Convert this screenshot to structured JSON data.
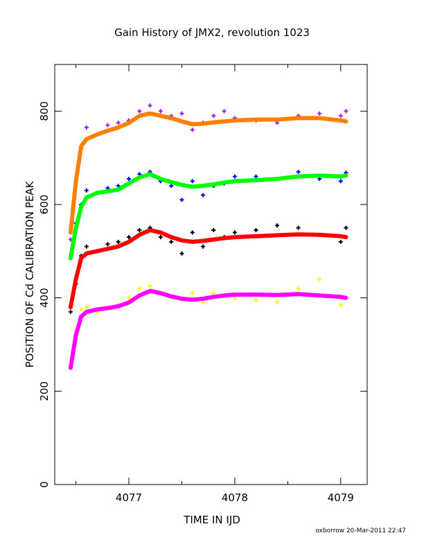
{
  "chart_data": {
    "type": "scatter",
    "title": "Gain History of JMX2, revolution 1023",
    "xlabel": "TIME IN IJD",
    "ylabel": "POSITION OF Cd CALIBRATION PEAK",
    "footer": "oxborrow 20-Mar-2011 22:47",
    "xlim": [
      4076.3,
      4079.25
    ],
    "ylim": [
      0,
      900
    ],
    "x_ticks": [
      4077,
      4078,
      4079
    ],
    "y_ticks": [
      0,
      200,
      400,
      600,
      800
    ],
    "x_tick_labels": [
      "4077",
      "4078",
      "4079"
    ],
    "y_tick_labels": [
      "0",
      "200",
      "400",
      "600",
      "800"
    ],
    "grid": false,
    "series": [
      {
        "color": "#a020f0",
        "trend_color": "#ff7f00",
        "x": [
          4076.45,
          4076.5,
          4076.55,
          4076.6,
          4076.7,
          4076.8,
          4076.9,
          4077.0,
          4077.1,
          4077.2,
          4077.3,
          4077.4,
          4077.5,
          4077.6,
          4077.7,
          4077.8,
          4077.9,
          4078.0,
          4078.2,
          4078.4,
          4078.6,
          4078.8,
          4079.0,
          4079.05
        ],
        "y": [
          525,
          645,
          720,
          765,
          750,
          770,
          775,
          780,
          800,
          812,
          800,
          790,
          795,
          760,
          775,
          790,
          800,
          785,
          780,
          775,
          790,
          795,
          790,
          800
        ],
        "trend_x": [
          4076.45,
          4076.5,
          4076.55,
          4076.6,
          4076.7,
          4076.8,
          4076.9,
          4077.0,
          4077.1,
          4077.2,
          4077.3,
          4077.4,
          4077.5,
          4077.6,
          4077.7,
          4077.8,
          4077.9,
          4078.0,
          4078.2,
          4078.4,
          4078.6,
          4078.8,
          4079.0,
          4079.05
        ],
        "trend_y": [
          540,
          650,
          725,
          740,
          750,
          758,
          765,
          775,
          790,
          795,
          790,
          785,
          778,
          772,
          773,
          776,
          778,
          780,
          782,
          782,
          785,
          785,
          780,
          778
        ]
      },
      {
        "color": "#0000ff",
        "trend_color": "#00ff00",
        "x": [
          4076.45,
          4076.5,
          4076.55,
          4076.6,
          4076.7,
          4076.8,
          4076.9,
          4077.0,
          4077.1,
          4077.2,
          4077.3,
          4077.4,
          4077.5,
          4077.6,
          4077.7,
          4077.8,
          4077.9,
          4078.0,
          4078.2,
          4078.4,
          4078.6,
          4078.8,
          4079.0,
          4079.05
        ],
        "y": [
          485,
          560,
          600,
          630,
          625,
          635,
          640,
          655,
          665,
          670,
          650,
          640,
          610,
          650,
          620,
          640,
          645,
          660,
          660,
          655,
          670,
          655,
          650,
          668
        ],
        "trend_x": [
          4076.45,
          4076.5,
          4076.55,
          4076.6,
          4076.7,
          4076.8,
          4076.9,
          4077.0,
          4077.1,
          4077.2,
          4077.3,
          4077.4,
          4077.5,
          4077.6,
          4077.7,
          4077.8,
          4077.9,
          4078.0,
          4078.2,
          4078.4,
          4078.6,
          4078.8,
          4079.0,
          4079.05
        ],
        "trend_y": [
          485,
          550,
          595,
          615,
          625,
          628,
          632,
          645,
          658,
          665,
          655,
          648,
          642,
          638,
          640,
          643,
          647,
          650,
          652,
          655,
          660,
          662,
          660,
          662
        ]
      },
      {
        "color": "#000000",
        "trend_color": "#ff0000",
        "x": [
          4076.45,
          4076.5,
          4076.55,
          4076.6,
          4076.7,
          4076.8,
          4076.9,
          4077.0,
          4077.1,
          4077.2,
          4077.3,
          4077.4,
          4077.5,
          4077.6,
          4077.7,
          4077.8,
          4077.9,
          4078.0,
          4078.2,
          4078.4,
          4078.6,
          4078.8,
          4079.0,
          4079.05
        ],
        "y": [
          370,
          430,
          490,
          510,
          500,
          515,
          520,
          530,
          545,
          550,
          530,
          520,
          495,
          540,
          510,
          545,
          530,
          540,
          545,
          555,
          550,
          535,
          520,
          550
        ],
        "trend_x": [
          4076.45,
          4076.5,
          4076.55,
          4076.6,
          4076.7,
          4076.8,
          4076.9,
          4077.0,
          4077.1,
          4077.2,
          4077.3,
          4077.4,
          4077.5,
          4077.6,
          4077.7,
          4077.8,
          4077.9,
          4078.0,
          4078.2,
          4078.4,
          4078.6,
          4078.8,
          4079.0,
          4079.05
        ],
        "trend_y": [
          380,
          440,
          485,
          495,
          500,
          505,
          510,
          520,
          535,
          545,
          540,
          530,
          523,
          520,
          522,
          525,
          528,
          530,
          532,
          534,
          536,
          535,
          532,
          530
        ]
      },
      {
        "color": "#ffff00",
        "trend_color": "#ff00ff",
        "x": [
          4076.45,
          4076.5,
          4076.55,
          4076.6,
          4076.7,
          4076.8,
          4076.9,
          4077.0,
          4077.1,
          4077.2,
          4077.3,
          4077.4,
          4077.5,
          4077.6,
          4077.7,
          4077.8,
          4077.9,
          4078.0,
          4078.2,
          4078.4,
          4078.6,
          4078.8,
          4079.0,
          4079.05
        ],
        "y": [
          250,
          330,
          375,
          380,
          370,
          380,
          385,
          400,
          420,
          425,
          410,
          400,
          395,
          410,
          390,
          410,
          405,
          400,
          395,
          390,
          420,
          440,
          385,
          400
        ],
        "trend_x": [
          4076.45,
          4076.5,
          4076.55,
          4076.6,
          4076.7,
          4076.8,
          4076.9,
          4077.0,
          4077.1,
          4077.2,
          4077.3,
          4077.4,
          4077.5,
          4077.6,
          4077.7,
          4077.8,
          4077.9,
          4078.0,
          4078.2,
          4078.4,
          4078.6,
          4078.8,
          4079.0,
          4079.05
        ],
        "trend_y": [
          250,
          320,
          360,
          370,
          375,
          378,
          382,
          390,
          405,
          415,
          410,
          403,
          398,
          396,
          398,
          402,
          405,
          407,
          407,
          406,
          408,
          405,
          402,
          400
        ]
      }
    ]
  }
}
